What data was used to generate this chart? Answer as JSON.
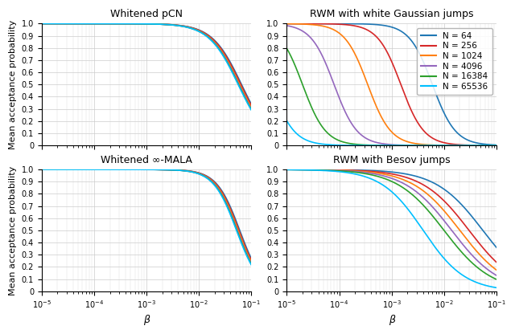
{
  "titles": [
    "Whitened pCN",
    "RWM with white Gaussian jumps",
    "Whitened ∞-MALA",
    "RWM with Besov jumps"
  ],
  "xlabel": "β",
  "ylabel": "Mean acceptance probability",
  "N_values": [
    64,
    256,
    1024,
    4096,
    16384,
    65536
  ],
  "colors": [
    "#1f77b4",
    "#d62728",
    "#ff7f0e",
    "#9467bd",
    "#2ca02c",
    "#00bfff"
  ],
  "xlim_log": [
    -5,
    -1
  ],
  "ylim": [
    0,
    1
  ],
  "yticks": [
    0,
    0.1,
    0.2,
    0.3,
    0.4,
    0.5,
    0.6,
    0.7,
    0.8,
    0.9,
    1.0
  ],
  "legend_loc": "upper right",
  "figsize": [
    6.4,
    4.16
  ],
  "dpi": 100,
  "pcn_centers": [
    0.065,
    0.063,
    0.06,
    0.058,
    0.057,
    0.056
  ],
  "pcn_widths": [
    0.28,
    0.28,
    0.28,
    0.28,
    0.28,
    0.28
  ],
  "rwmg_centers": [
    0.006,
    0.0015,
    0.00035,
    8e-05,
    2e-05,
    5e-06
  ],
  "rwmg_widths": [
    0.22,
    0.22,
    0.22,
    0.22,
    0.22,
    0.22
  ],
  "mala_centers": [
    0.06,
    0.058,
    0.056,
    0.054,
    0.053,
    0.052
  ],
  "mala_widths": [
    0.22,
    0.22,
    0.22,
    0.22,
    0.22,
    0.22
  ],
  "besov_centers": [
    0.055,
    0.03,
    0.02,
    0.014,
    0.01,
    0.004
  ],
  "besov_widths": [
    0.45,
    0.45,
    0.45,
    0.45,
    0.45,
    0.4
  ]
}
